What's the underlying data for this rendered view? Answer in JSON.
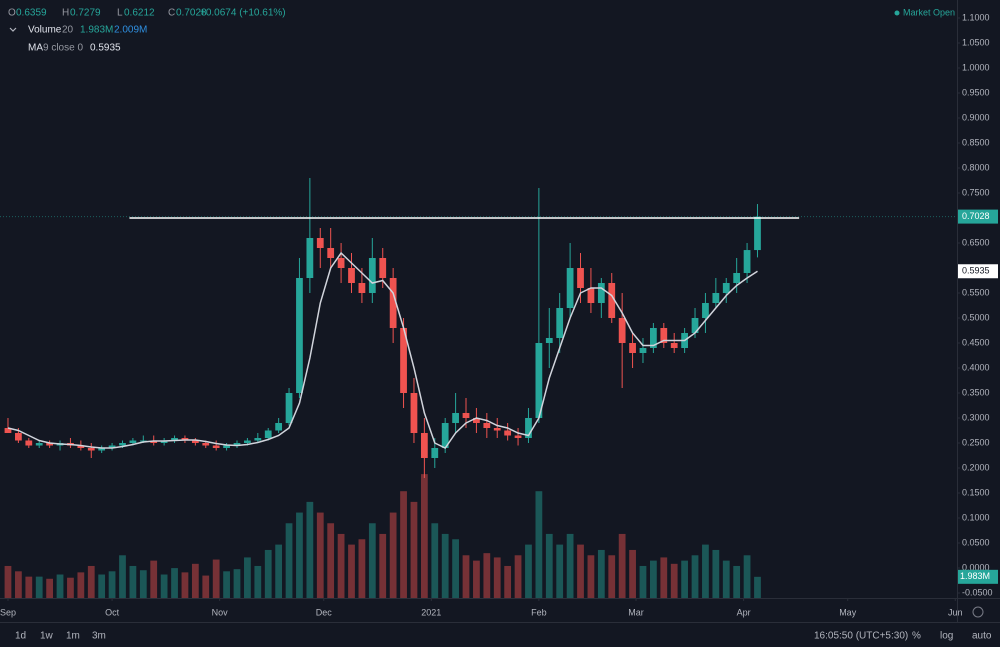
{
  "chart_data": {
    "type": "candlestick",
    "x": [
      0,
      3,
      6,
      9,
      12,
      15,
      18,
      21,
      24,
      27,
      30,
      33,
      36,
      39,
      42,
      45,
      48,
      51,
      54,
      57,
      60,
      63,
      66,
      69,
      72,
      75,
      78,
      81,
      84,
      87,
      90,
      93,
      96,
      99,
      102,
      105,
      108,
      111,
      114,
      117,
      120,
      123,
      126,
      129,
      132,
      135,
      138,
      141,
      144,
      147,
      150,
      153,
      156,
      159,
      162,
      165,
      168,
      171,
      174,
      177,
      180,
      183,
      186,
      189,
      192,
      195,
      198,
      201,
      204,
      207,
      210,
      213,
      216
    ],
    "open": [
      0.28,
      0.27,
      0.255,
      0.245,
      0.25,
      0.245,
      0.25,
      0.245,
      0.24,
      0.235,
      0.24,
      0.245,
      0.25,
      0.255,
      0.255,
      0.25,
      0.255,
      0.26,
      0.255,
      0.25,
      0.245,
      0.24,
      0.245,
      0.25,
      0.255,
      0.26,
      0.275,
      0.29,
      0.35,
      0.58,
      0.66,
      0.64,
      0.62,
      0.6,
      0.57,
      0.55,
      0.62,
      0.58,
      0.48,
      0.35,
      0.27,
      0.22,
      0.24,
      0.29,
      0.31,
      0.3,
      0.29,
      0.28,
      0.275,
      0.265,
      0.26,
      0.3,
      0.45,
      0.46,
      0.52,
      0.6,
      0.56,
      0.53,
      0.57,
      0.5,
      0.45,
      0.43,
      0.44,
      0.48,
      0.45,
      0.44,
      0.47,
      0.5,
      0.53,
      0.55,
      0.57,
      0.59,
      0.6359
    ],
    "high": [
      0.3,
      0.28,
      0.26,
      0.255,
      0.255,
      0.255,
      0.26,
      0.255,
      0.25,
      0.245,
      0.25,
      0.255,
      0.26,
      0.265,
      0.265,
      0.26,
      0.265,
      0.265,
      0.26,
      0.255,
      0.255,
      0.25,
      0.255,
      0.26,
      0.27,
      0.28,
      0.3,
      0.36,
      0.62,
      0.78,
      0.68,
      0.68,
      0.65,
      0.63,
      0.6,
      0.66,
      0.64,
      0.6,
      0.5,
      0.38,
      0.3,
      0.26,
      0.3,
      0.35,
      0.34,
      0.32,
      0.31,
      0.3,
      0.29,
      0.28,
      0.32,
      0.76,
      0.52,
      0.55,
      0.65,
      0.63,
      0.6,
      0.58,
      0.59,
      0.55,
      0.47,
      0.46,
      0.49,
      0.49,
      0.47,
      0.48,
      0.52,
      0.55,
      0.58,
      0.58,
      0.62,
      0.65,
      0.7279
    ],
    "low": [
      0.27,
      0.25,
      0.24,
      0.24,
      0.24,
      0.235,
      0.24,
      0.235,
      0.22,
      0.23,
      0.235,
      0.24,
      0.245,
      0.25,
      0.245,
      0.245,
      0.25,
      0.25,
      0.245,
      0.24,
      0.235,
      0.235,
      0.24,
      0.245,
      0.25,
      0.255,
      0.27,
      0.285,
      0.34,
      0.55,
      0.6,
      0.6,
      0.57,
      0.55,
      0.53,
      0.53,
      0.56,
      0.45,
      0.32,
      0.25,
      0.18,
      0.2,
      0.23,
      0.27,
      0.28,
      0.27,
      0.26,
      0.26,
      0.255,
      0.245,
      0.25,
      0.29,
      0.4,
      0.43,
      0.5,
      0.53,
      0.51,
      0.5,
      0.49,
      0.36,
      0.4,
      0.41,
      0.43,
      0.44,
      0.43,
      0.43,
      0.46,
      0.47,
      0.52,
      0.53,
      0.55,
      0.57,
      0.6212
    ],
    "close": [
      0.27,
      0.255,
      0.245,
      0.25,
      0.245,
      0.25,
      0.245,
      0.24,
      0.235,
      0.24,
      0.245,
      0.25,
      0.255,
      0.255,
      0.25,
      0.255,
      0.26,
      0.255,
      0.25,
      0.245,
      0.24,
      0.245,
      0.25,
      0.255,
      0.26,
      0.275,
      0.29,
      0.35,
      0.58,
      0.66,
      0.64,
      0.62,
      0.6,
      0.57,
      0.55,
      0.62,
      0.58,
      0.48,
      0.35,
      0.27,
      0.22,
      0.24,
      0.29,
      0.31,
      0.3,
      0.29,
      0.28,
      0.275,
      0.265,
      0.26,
      0.3,
      0.45,
      0.46,
      0.52,
      0.6,
      0.56,
      0.53,
      0.57,
      0.5,
      0.45,
      0.43,
      0.44,
      0.48,
      0.45,
      0.44,
      0.47,
      0.5,
      0.53,
      0.55,
      0.57,
      0.59,
      0.6359,
      0.7028
    ],
    "volume": [
      3,
      2.5,
      2,
      2,
      1.8,
      2.2,
      1.9,
      2.4,
      3,
      2.2,
      2.5,
      4,
      3,
      2.6,
      3.5,
      2.2,
      2.8,
      2.4,
      3.2,
      2.1,
      3.6,
      2.5,
      2.7,
      3.8,
      3,
      4.5,
      5,
      7,
      8,
      9,
      8,
      7,
      6,
      5,
      5.5,
      7,
      6,
      8,
      10,
      9,
      11.6,
      7,
      6,
      5.5,
      4,
      3.5,
      4.2,
      3.8,
      3,
      4,
      5,
      10,
      6,
      5,
      6,
      5,
      4,
      4.5,
      4,
      6,
      4.5,
      3,
      3.5,
      3.8,
      3.2,
      3.5,
      4,
      5,
      4.5,
      3.5,
      3,
      4,
      1.983
    ],
    "ma": [
      0.28,
      0.275,
      0.265,
      0.255,
      0.25,
      0.248,
      0.247,
      0.245,
      0.242,
      0.24,
      0.24,
      0.243,
      0.247,
      0.252,
      0.254,
      0.254,
      0.255,
      0.256,
      0.256,
      0.253,
      0.249,
      0.246,
      0.245,
      0.247,
      0.251,
      0.257,
      0.265,
      0.28,
      0.33,
      0.42,
      0.53,
      0.6,
      0.63,
      0.61,
      0.59,
      0.57,
      0.575,
      0.55,
      0.48,
      0.4,
      0.31,
      0.25,
      0.24,
      0.27,
      0.29,
      0.3,
      0.295,
      0.285,
      0.28,
      0.27,
      0.265,
      0.3,
      0.38,
      0.44,
      0.5,
      0.55,
      0.56,
      0.56,
      0.545,
      0.51,
      0.47,
      0.445,
      0.445,
      0.455,
      0.455,
      0.455,
      0.47,
      0.495,
      0.52,
      0.545,
      0.565,
      0.58,
      0.5935
    ],
    "up_color": "#26a69a",
    "down_color": "#ef5350",
    "ma_color": "#d1d4dc",
    "xlim": [
      -2.3,
      273.5
    ],
    "ylim": [
      -0.06,
      1.136
    ],
    "volume_lim": [
      0,
      56
    ],
    "xticks": [
      {
        "value": 0,
        "label": "Sep"
      },
      {
        "value": 30,
        "label": "Oct"
      },
      {
        "value": 61,
        "label": "Nov"
      },
      {
        "value": 91,
        "label": "Dec"
      },
      {
        "value": 122,
        "label": "2021"
      },
      {
        "value": 153,
        "label": "Feb"
      },
      {
        "value": 181,
        "label": "Mar"
      },
      {
        "value": 212,
        "label": "Apr"
      },
      {
        "value": 242,
        "label": "May"
      },
      {
        "value": 273,
        "label": "Jun"
      }
    ],
    "yticks": [
      {
        "value": 1.1,
        "label": "1.1000"
      },
      {
        "value": 1.05,
        "label": "1.0500"
      },
      {
        "value": 1.0,
        "label": "1.0000"
      },
      {
        "value": 0.95,
        "label": "0.9500"
      },
      {
        "value": 0.9,
        "label": "0.9000"
      },
      {
        "value": 0.85,
        "label": "0.8500"
      },
      {
        "value": 0.8,
        "label": "0.8000"
      },
      {
        "value": 0.75,
        "label": "0.7500"
      },
      {
        "value": 0.65,
        "label": "0.6500"
      },
      {
        "value": 0.55,
        "label": "0.5500"
      },
      {
        "value": 0.5,
        "label": "0.5000"
      },
      {
        "value": 0.45,
        "label": "0.4500"
      },
      {
        "value": 0.4,
        "label": "0.4000"
      },
      {
        "value": 0.35,
        "label": "0.3500"
      },
      {
        "value": 0.3,
        "label": "0.3000"
      },
      {
        "value": 0.25,
        "label": "0.2500"
      },
      {
        "value": 0.2,
        "label": "0.2000"
      },
      {
        "value": 0.15,
        "label": "0.1500"
      },
      {
        "value": 0.1,
        "label": "0.1000"
      },
      {
        "value": 0.05,
        "label": "0.0500"
      },
      {
        "value": 0,
        "label": "0.0000"
      },
      {
        "value": -0.05,
        "label": "-0.0500"
      }
    ],
    "grid": false,
    "log_scale": false,
    "resistance_line": {
      "y": 0.7,
      "x": [
        35,
        228
      ],
      "color": "#ffffff"
    }
  },
  "ui": {
    "header": {
      "o": "O",
      "h": "H",
      "l": "L",
      "c": "C",
      "change": "+0.0674 (+10.61%)"
    },
    "volume_legend": {
      "name": "Volume",
      "params": "20",
      "value": "1.983M",
      "ma": "2.009M"
    },
    "ma_legend": {
      "name": "MA",
      "params": "9 close 0"
    },
    "status": "Market Open",
    "ranges": [
      "1d",
      "1w",
      "1m",
      "3m"
    ],
    "clock": "16:05:50 (UTC+5:30)",
    "buttons": [
      "%",
      "log",
      "auto"
    ]
  }
}
